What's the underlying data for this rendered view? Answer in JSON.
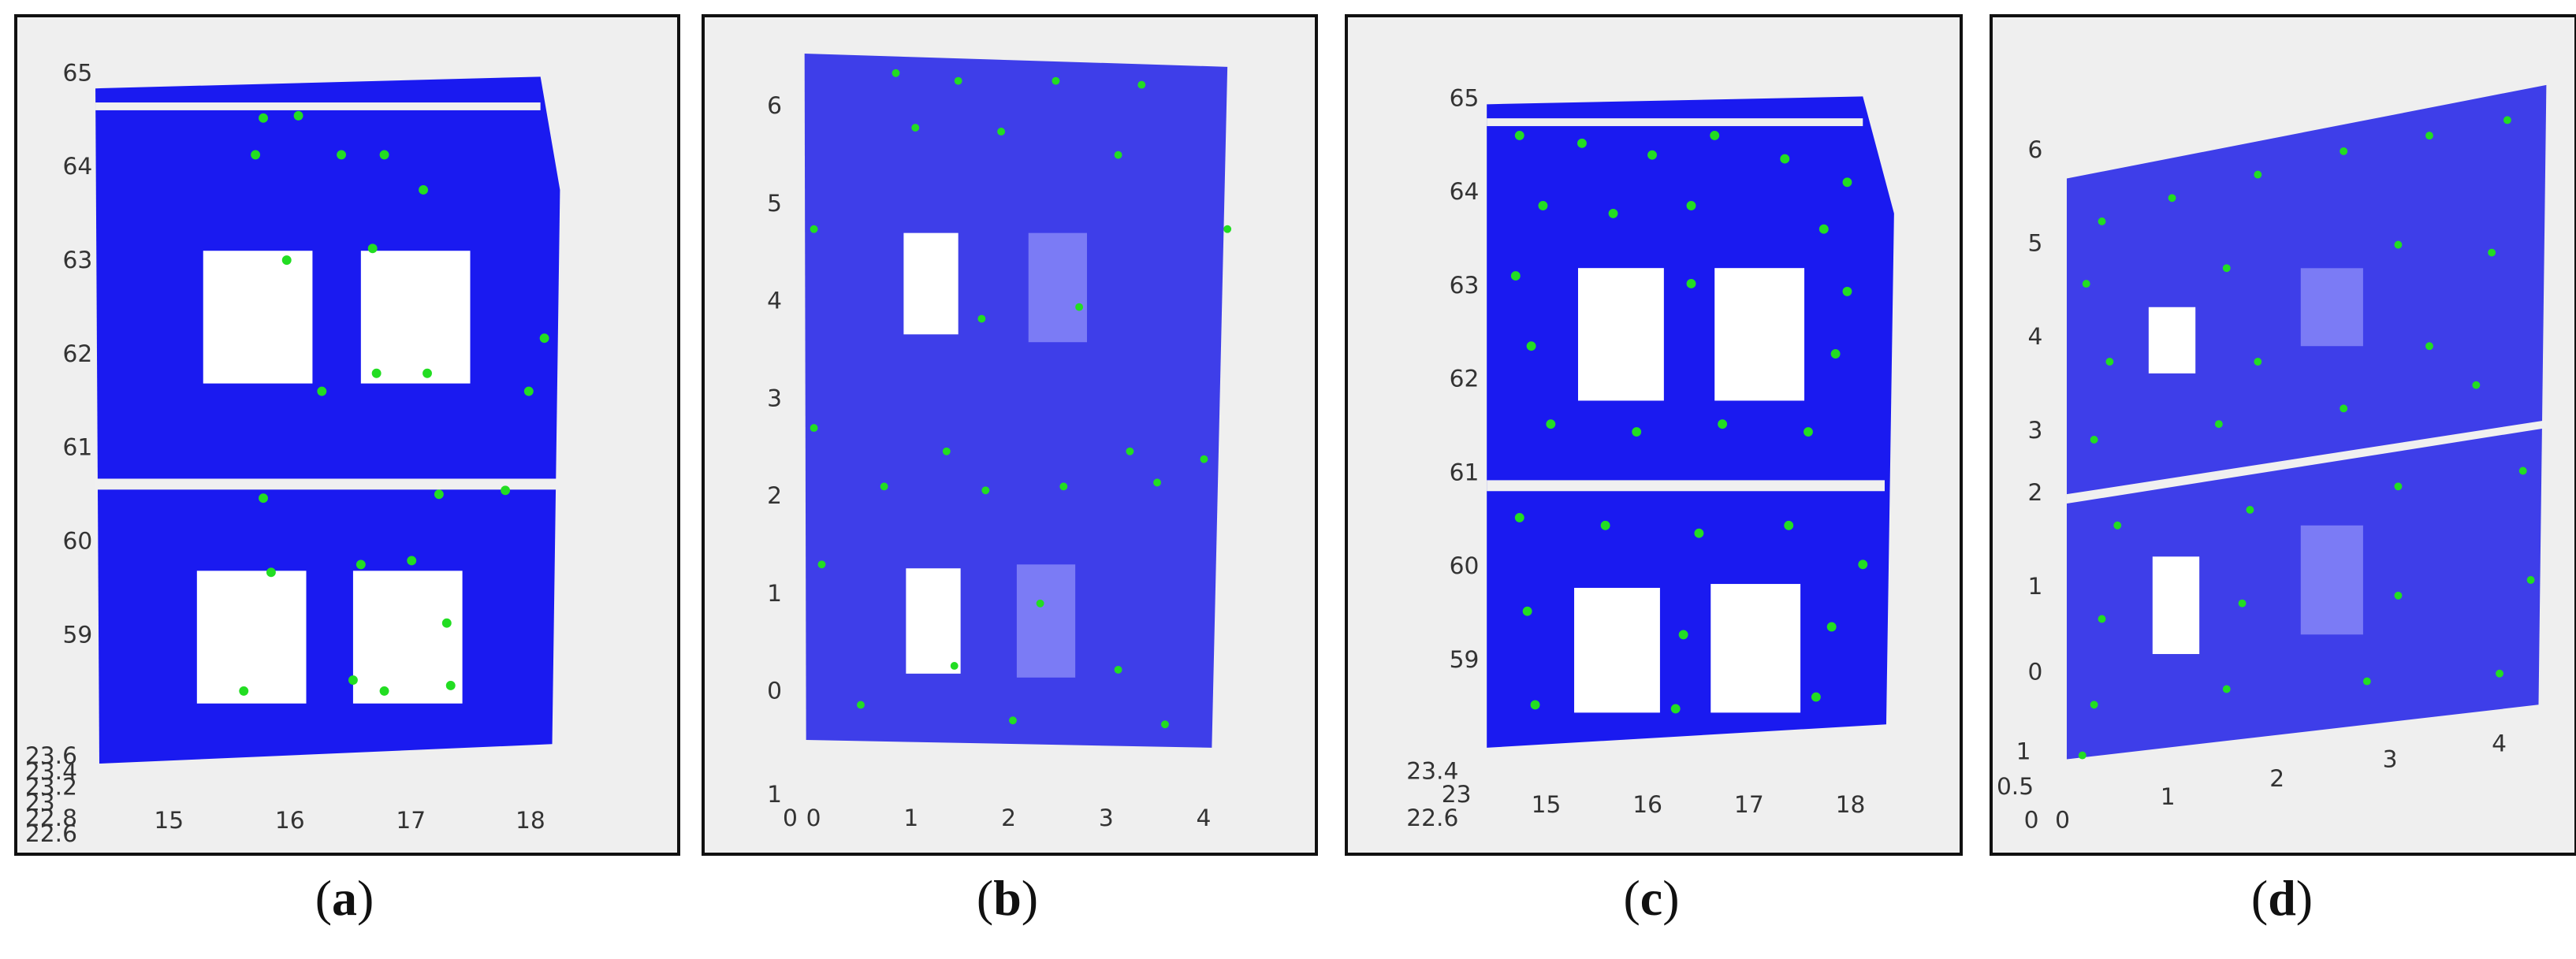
{
  "chart_data": [
    {
      "type": "scatter",
      "panel": "a",
      "caption_letter": "a",
      "x_ticks": [
        "15",
        "16",
        "17",
        "18"
      ],
      "y_ticks": [
        "65",
        "64",
        "63",
        "62",
        "61",
        "60",
        "59"
      ],
      "z_ticks": [
        "23.6",
        "23.4",
        "23.2",
        "23",
        "22.8",
        "22.6"
      ],
      "colors": {
        "cloud": "#1a1af0",
        "keypoint": "#22dd22"
      },
      "grid": true
    },
    {
      "type": "scatter",
      "panel": "b",
      "caption_letter": "b",
      "x_ticks": [
        "0",
        "1",
        "2",
        "3",
        "4"
      ],
      "y_ticks": [
        "6",
        "5",
        "4",
        "3",
        "2",
        "1",
        "0"
      ],
      "z_ticks": [
        "1",
        "0"
      ],
      "colors": {
        "cloud": "#1a1af0",
        "keypoint": "#22dd22"
      },
      "grid": true
    },
    {
      "type": "scatter",
      "panel": "c",
      "caption_letter": "c",
      "x_ticks": [
        "15",
        "16",
        "17",
        "18"
      ],
      "y_ticks": [
        "65",
        "64",
        "63",
        "62",
        "61",
        "60",
        "59"
      ],
      "z_ticks": [
        "23.4",
        "23",
        "22.6"
      ],
      "colors": {
        "cloud": "#1a1af0",
        "keypoint": "#22dd22"
      },
      "grid": true
    },
    {
      "type": "scatter",
      "panel": "d",
      "caption_letter": "d",
      "x_ticks": [
        "0",
        "1",
        "2",
        "3",
        "4"
      ],
      "y_ticks": [
        "6",
        "5",
        "4",
        "3",
        "2",
        "1",
        "0"
      ],
      "z_ticks": [
        "1",
        "0.5",
        "0"
      ],
      "colors": {
        "cloud": "#1a1af0",
        "keypoint": "#22dd22"
      },
      "grid": true
    }
  ],
  "captions": [
    "a",
    "b",
    "c",
    "d"
  ]
}
